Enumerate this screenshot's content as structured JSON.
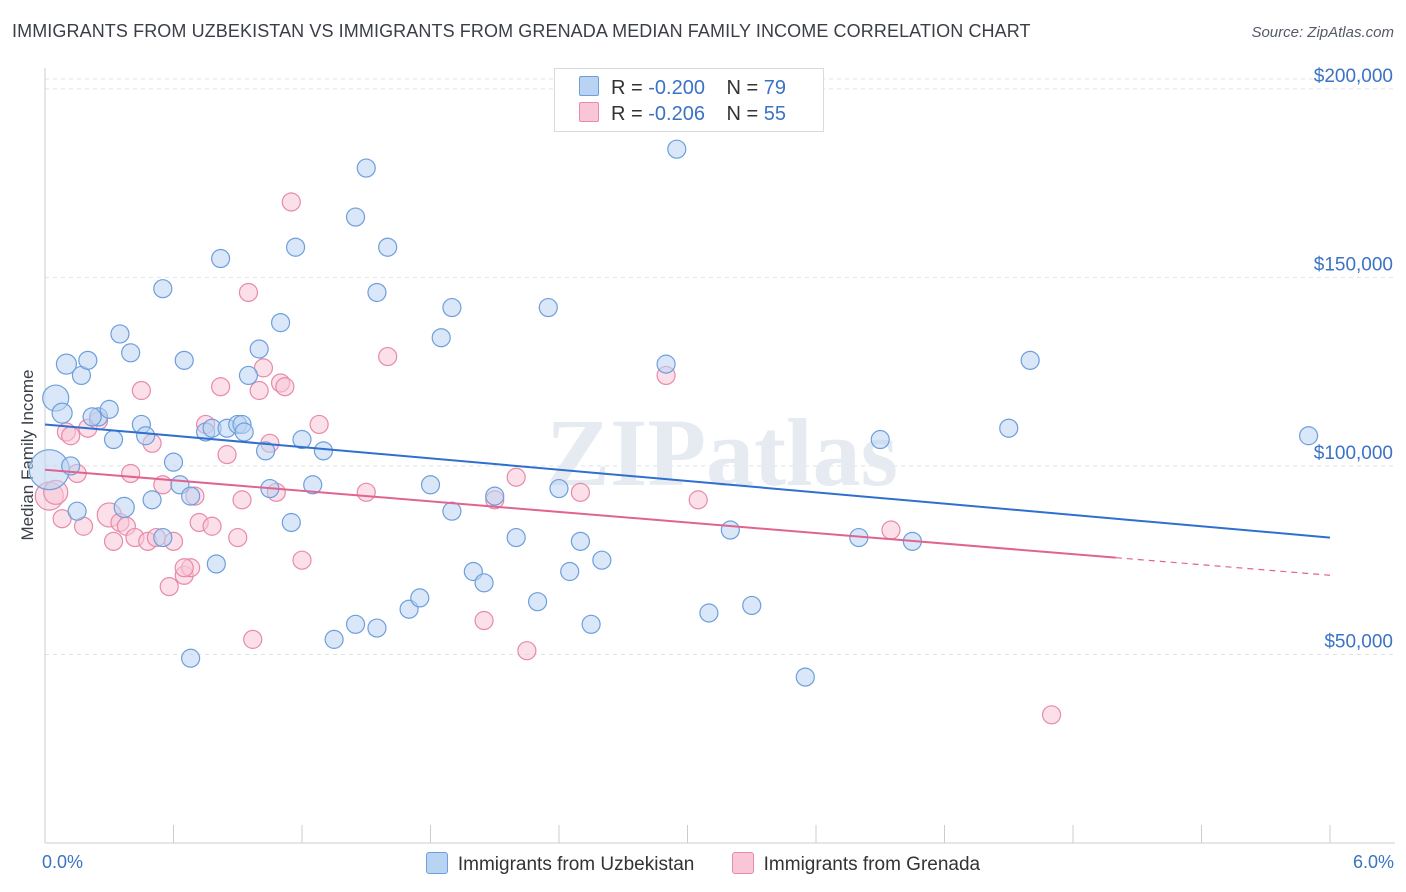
{
  "title": "IMMIGRANTS FROM UZBEKISTAN VS IMMIGRANTS FROM GRENADA MEDIAN FAMILY INCOME CORRELATION CHART",
  "source": "Source: ZipAtlas.com",
  "watermark": "ZIPatlas",
  "legend": {
    "rows": [
      {
        "r_label": "R = ",
        "r_value": "-0.200",
        "n_label": "N = ",
        "n_value": "79"
      },
      {
        "r_label": "R = ",
        "r_value": "-0.206",
        "n_label": "N = ",
        "n_value": "55"
      }
    ]
  },
  "x_axis": {
    "min_label": "0.0%",
    "max_label": "6.0%"
  },
  "colors": {
    "blue_fill": "#b9d3f2",
    "blue_stroke": "#6e9fdc",
    "blue_line": "#2f6fd0",
    "pink_fill": "#f8c6d7",
    "pink_stroke": "#e88aa8",
    "pink_line": "#e0648f",
    "axis_text": "#3b73c4",
    "grid": "#dfe3e8"
  },
  "chart_data": {
    "type": "scatter",
    "title": "IMMIGRANTS FROM UZBEKISTAN VS IMMIGRANTS FROM GRENADA MEDIAN FAMILY INCOME CORRELATION CHART",
    "xlabel": "",
    "ylabel": "Median Family Income",
    "xlim": [
      0,
      6
    ],
    "ylim": [
      0,
      205000
    ],
    "y_ticks": [
      {
        "value": 50000,
        "label": "$50,000"
      },
      {
        "value": 100000,
        "label": "$100,000"
      },
      {
        "value": 150000,
        "label": "$150,000"
      },
      {
        "value": 200000,
        "label": "$200,000"
      }
    ],
    "x_ticks": [
      0,
      0.6,
      1.2,
      1.8,
      2.4,
      3.0,
      3.6,
      4.2,
      4.8,
      5.4,
      6.0
    ],
    "series": [
      {
        "name": "Immigrants from Uzbekistan",
        "color": "blue",
        "trend": {
          "x0": 0.0,
          "y0": 111000,
          "x1": 6.0,
          "y1": 81000,
          "dashed_from": null
        },
        "points": [
          [
            0.02,
            99000,
            20
          ],
          [
            0.05,
            118000,
            13
          ],
          [
            0.08,
            114000,
            10
          ],
          [
            0.1,
            127000,
            10
          ],
          [
            0.12,
            100000,
            9
          ],
          [
            0.17,
            124000,
            9
          ],
          [
            0.2,
            128000,
            9
          ],
          [
            0.25,
            113000,
            9
          ],
          [
            0.3,
            115000,
            9
          ],
          [
            0.32,
            107000,
            9
          ],
          [
            0.35,
            135000,
            9
          ],
          [
            0.37,
            89000,
            10
          ],
          [
            0.4,
            130000,
            9
          ],
          [
            0.45,
            111000,
            9
          ],
          [
            0.47,
            108000,
            9
          ],
          [
            0.5,
            91000,
            9
          ],
          [
            0.55,
            81000,
            9
          ],
          [
            0.6,
            101000,
            9
          ],
          [
            0.55,
            147000,
            9
          ],
          [
            0.63,
            95000,
            9
          ],
          [
            0.65,
            128000,
            9
          ],
          [
            0.68,
            92000,
            9
          ],
          [
            0.75,
            109000,
            9
          ],
          [
            0.78,
            110000,
            9
          ],
          [
            0.8,
            74000,
            9
          ],
          [
            0.82,
            155000,
            9
          ],
          [
            0.85,
            110000,
            9
          ],
          [
            0.9,
            111000,
            9
          ],
          [
            0.92,
            111000,
            9
          ],
          [
            0.95,
            124000,
            9
          ],
          [
            1.0,
            131000,
            9
          ],
          [
            1.05,
            94000,
            9
          ],
          [
            1.1,
            138000,
            9
          ],
          [
            1.15,
            85000,
            9
          ],
          [
            1.17,
            158000,
            9
          ],
          [
            1.2,
            107000,
            9
          ],
          [
            1.25,
            95000,
            9
          ],
          [
            1.3,
            104000,
            9
          ],
          [
            1.35,
            54000,
            9
          ],
          [
            1.45,
            166000,
            9
          ],
          [
            1.5,
            179000,
            9
          ],
          [
            1.55,
            146000,
            9
          ],
          [
            1.6,
            158000,
            9
          ],
          [
            1.7,
            62000,
            9
          ],
          [
            1.75,
            65000,
            9
          ],
          [
            1.8,
            95000,
            9
          ],
          [
            1.85,
            134000,
            9
          ],
          [
            1.9,
            142000,
            9
          ],
          [
            2.0,
            72000,
            9
          ],
          [
            2.05,
            69000,
            9
          ],
          [
            2.1,
            92000,
            9
          ],
          [
            2.2,
            81000,
            9
          ],
          [
            2.3,
            64000,
            9
          ],
          [
            2.35,
            142000,
            9
          ],
          [
            2.4,
            94000,
            9
          ],
          [
            2.45,
            72000,
            9
          ],
          [
            2.5,
            80000,
            9
          ],
          [
            2.55,
            58000,
            9
          ],
          [
            2.6,
            75000,
            9
          ],
          [
            2.9,
            127000,
            9
          ],
          [
            2.95,
            184000,
            9
          ],
          [
            3.1,
            61000,
            9
          ],
          [
            3.2,
            83000,
            9
          ],
          [
            3.3,
            63000,
            9
          ],
          [
            3.55,
            44000,
            9
          ],
          [
            3.8,
            81000,
            9
          ],
          [
            3.9,
            107000,
            9
          ],
          [
            4.05,
            80000,
            9
          ],
          [
            4.5,
            110000,
            9
          ],
          [
            4.6,
            128000,
            9
          ],
          [
            5.9,
            108000,
            9
          ],
          [
            0.68,
            49000,
            9
          ],
          [
            1.45,
            58000,
            9
          ],
          [
            0.93,
            109000,
            9
          ],
          [
            1.03,
            104000,
            9
          ],
          [
            0.15,
            88000,
            9
          ],
          [
            0.22,
            113000,
            9
          ],
          [
            1.9,
            88000,
            9
          ],
          [
            1.55,
            57000,
            9
          ]
        ]
      },
      {
        "name": "Immigrants from Grenada",
        "color": "pink",
        "trend": {
          "x0": 0.0,
          "y0": 99000,
          "x1": 6.0,
          "y1": 71000,
          "dashed_from": 5.0
        },
        "points": [
          [
            0.02,
            92000,
            14
          ],
          [
            0.05,
            93000,
            12
          ],
          [
            0.08,
            86000,
            9
          ],
          [
            0.1,
            109000,
            9
          ],
          [
            0.12,
            108000,
            9
          ],
          [
            0.15,
            98000,
            9
          ],
          [
            0.18,
            84000,
            9
          ],
          [
            0.2,
            110000,
            9
          ],
          [
            0.25,
            112000,
            9
          ],
          [
            0.3,
            87000,
            12
          ],
          [
            0.32,
            80000,
            9
          ],
          [
            0.35,
            85000,
            9
          ],
          [
            0.38,
            84000,
            9
          ],
          [
            0.4,
            98000,
            9
          ],
          [
            0.42,
            81000,
            9
          ],
          [
            0.45,
            120000,
            9
          ],
          [
            0.48,
            80000,
            9
          ],
          [
            0.5,
            106000,
            9
          ],
          [
            0.52,
            81000,
            9
          ],
          [
            0.55,
            95000,
            9
          ],
          [
            0.58,
            68000,
            9
          ],
          [
            0.6,
            80000,
            9
          ],
          [
            0.65,
            71000,
            9
          ],
          [
            0.68,
            73000,
            9
          ],
          [
            0.7,
            92000,
            9
          ],
          [
            0.72,
            85000,
            9
          ],
          [
            0.75,
            111000,
            9
          ],
          [
            0.78,
            84000,
            9
          ],
          [
            0.82,
            121000,
            9
          ],
          [
            0.85,
            103000,
            9
          ],
          [
            0.9,
            81000,
            9
          ],
          [
            0.92,
            91000,
            9
          ],
          [
            0.95,
            146000,
            9
          ],
          [
            0.97,
            54000,
            9
          ],
          [
            1.0,
            120000,
            9
          ],
          [
            1.02,
            126000,
            9
          ],
          [
            1.05,
            106000,
            9
          ],
          [
            1.08,
            93000,
            9
          ],
          [
            1.1,
            122000,
            9
          ],
          [
            1.12,
            121000,
            9
          ],
          [
            1.15,
            170000,
            9
          ],
          [
            1.2,
            75000,
            9
          ],
          [
            1.28,
            111000,
            9
          ],
          [
            1.5,
            93000,
            9
          ],
          [
            1.6,
            129000,
            9
          ],
          [
            2.05,
            59000,
            9
          ],
          [
            2.1,
            91000,
            9
          ],
          [
            2.2,
            97000,
            9
          ],
          [
            2.25,
            51000,
            9
          ],
          [
            2.5,
            93000,
            9
          ],
          [
            2.9,
            124000,
            9
          ],
          [
            3.05,
            91000,
            9
          ],
          [
            3.95,
            83000,
            9
          ],
          [
            4.7,
            34000,
            9
          ],
          [
            0.65,
            73000,
            9
          ]
        ]
      }
    ]
  },
  "bottom_legend": {
    "items": [
      "Immigrants from Uzbekistan",
      "Immigrants from Grenada"
    ]
  }
}
